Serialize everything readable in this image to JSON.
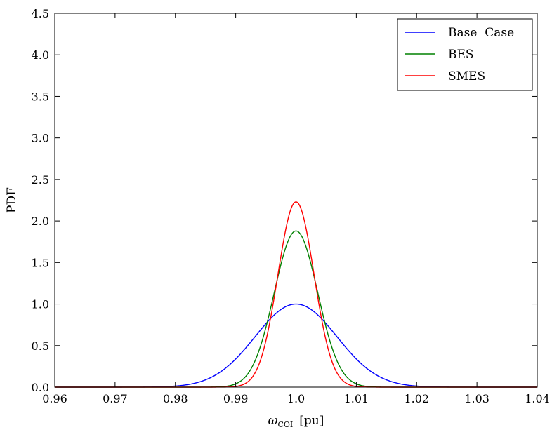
{
  "chart_data": {
    "type": "line",
    "title": "",
    "xlabel": "ω",
    "xlabel_sub": "COI",
    "xlabel_unit": "[pu]",
    "ylabel": "PDF",
    "xlim": [
      0.96,
      1.04
    ],
    "ylim": [
      0.0,
      4.5
    ],
    "xticks": [
      0.96,
      0.97,
      0.98,
      0.99,
      1.0,
      1.01,
      1.02,
      1.03,
      1.04
    ],
    "xtick_labels": [
      "0.96",
      "0.97",
      "0.98",
      "0.99",
      "1.0",
      "1.01",
      "1.02",
      "1.03",
      "1.04"
    ],
    "yticks": [
      0.0,
      0.5,
      1.0,
      1.5,
      2.0,
      2.5,
      3.0,
      3.5,
      4.0,
      4.5
    ],
    "ytick_labels": [
      "0.0",
      "0.5",
      "1.0",
      "1.5",
      "2.0",
      "2.5",
      "3.0",
      "3.5",
      "4.0",
      "4.5"
    ],
    "grid": false,
    "legend_position": "top-right",
    "series": [
      {
        "name": "Base  Case",
        "color": "#0000ff",
        "mean": 1.0,
        "std": 0.0068,
        "peak": 1.0
      },
      {
        "name": "BES",
        "color": "#008000",
        "mean": 1.0,
        "std": 0.0036,
        "peak": 1.88
      },
      {
        "name": "SMES",
        "color": "#ff0000",
        "mean": 1.0,
        "std": 0.003,
        "peak": 2.23
      }
    ]
  }
}
